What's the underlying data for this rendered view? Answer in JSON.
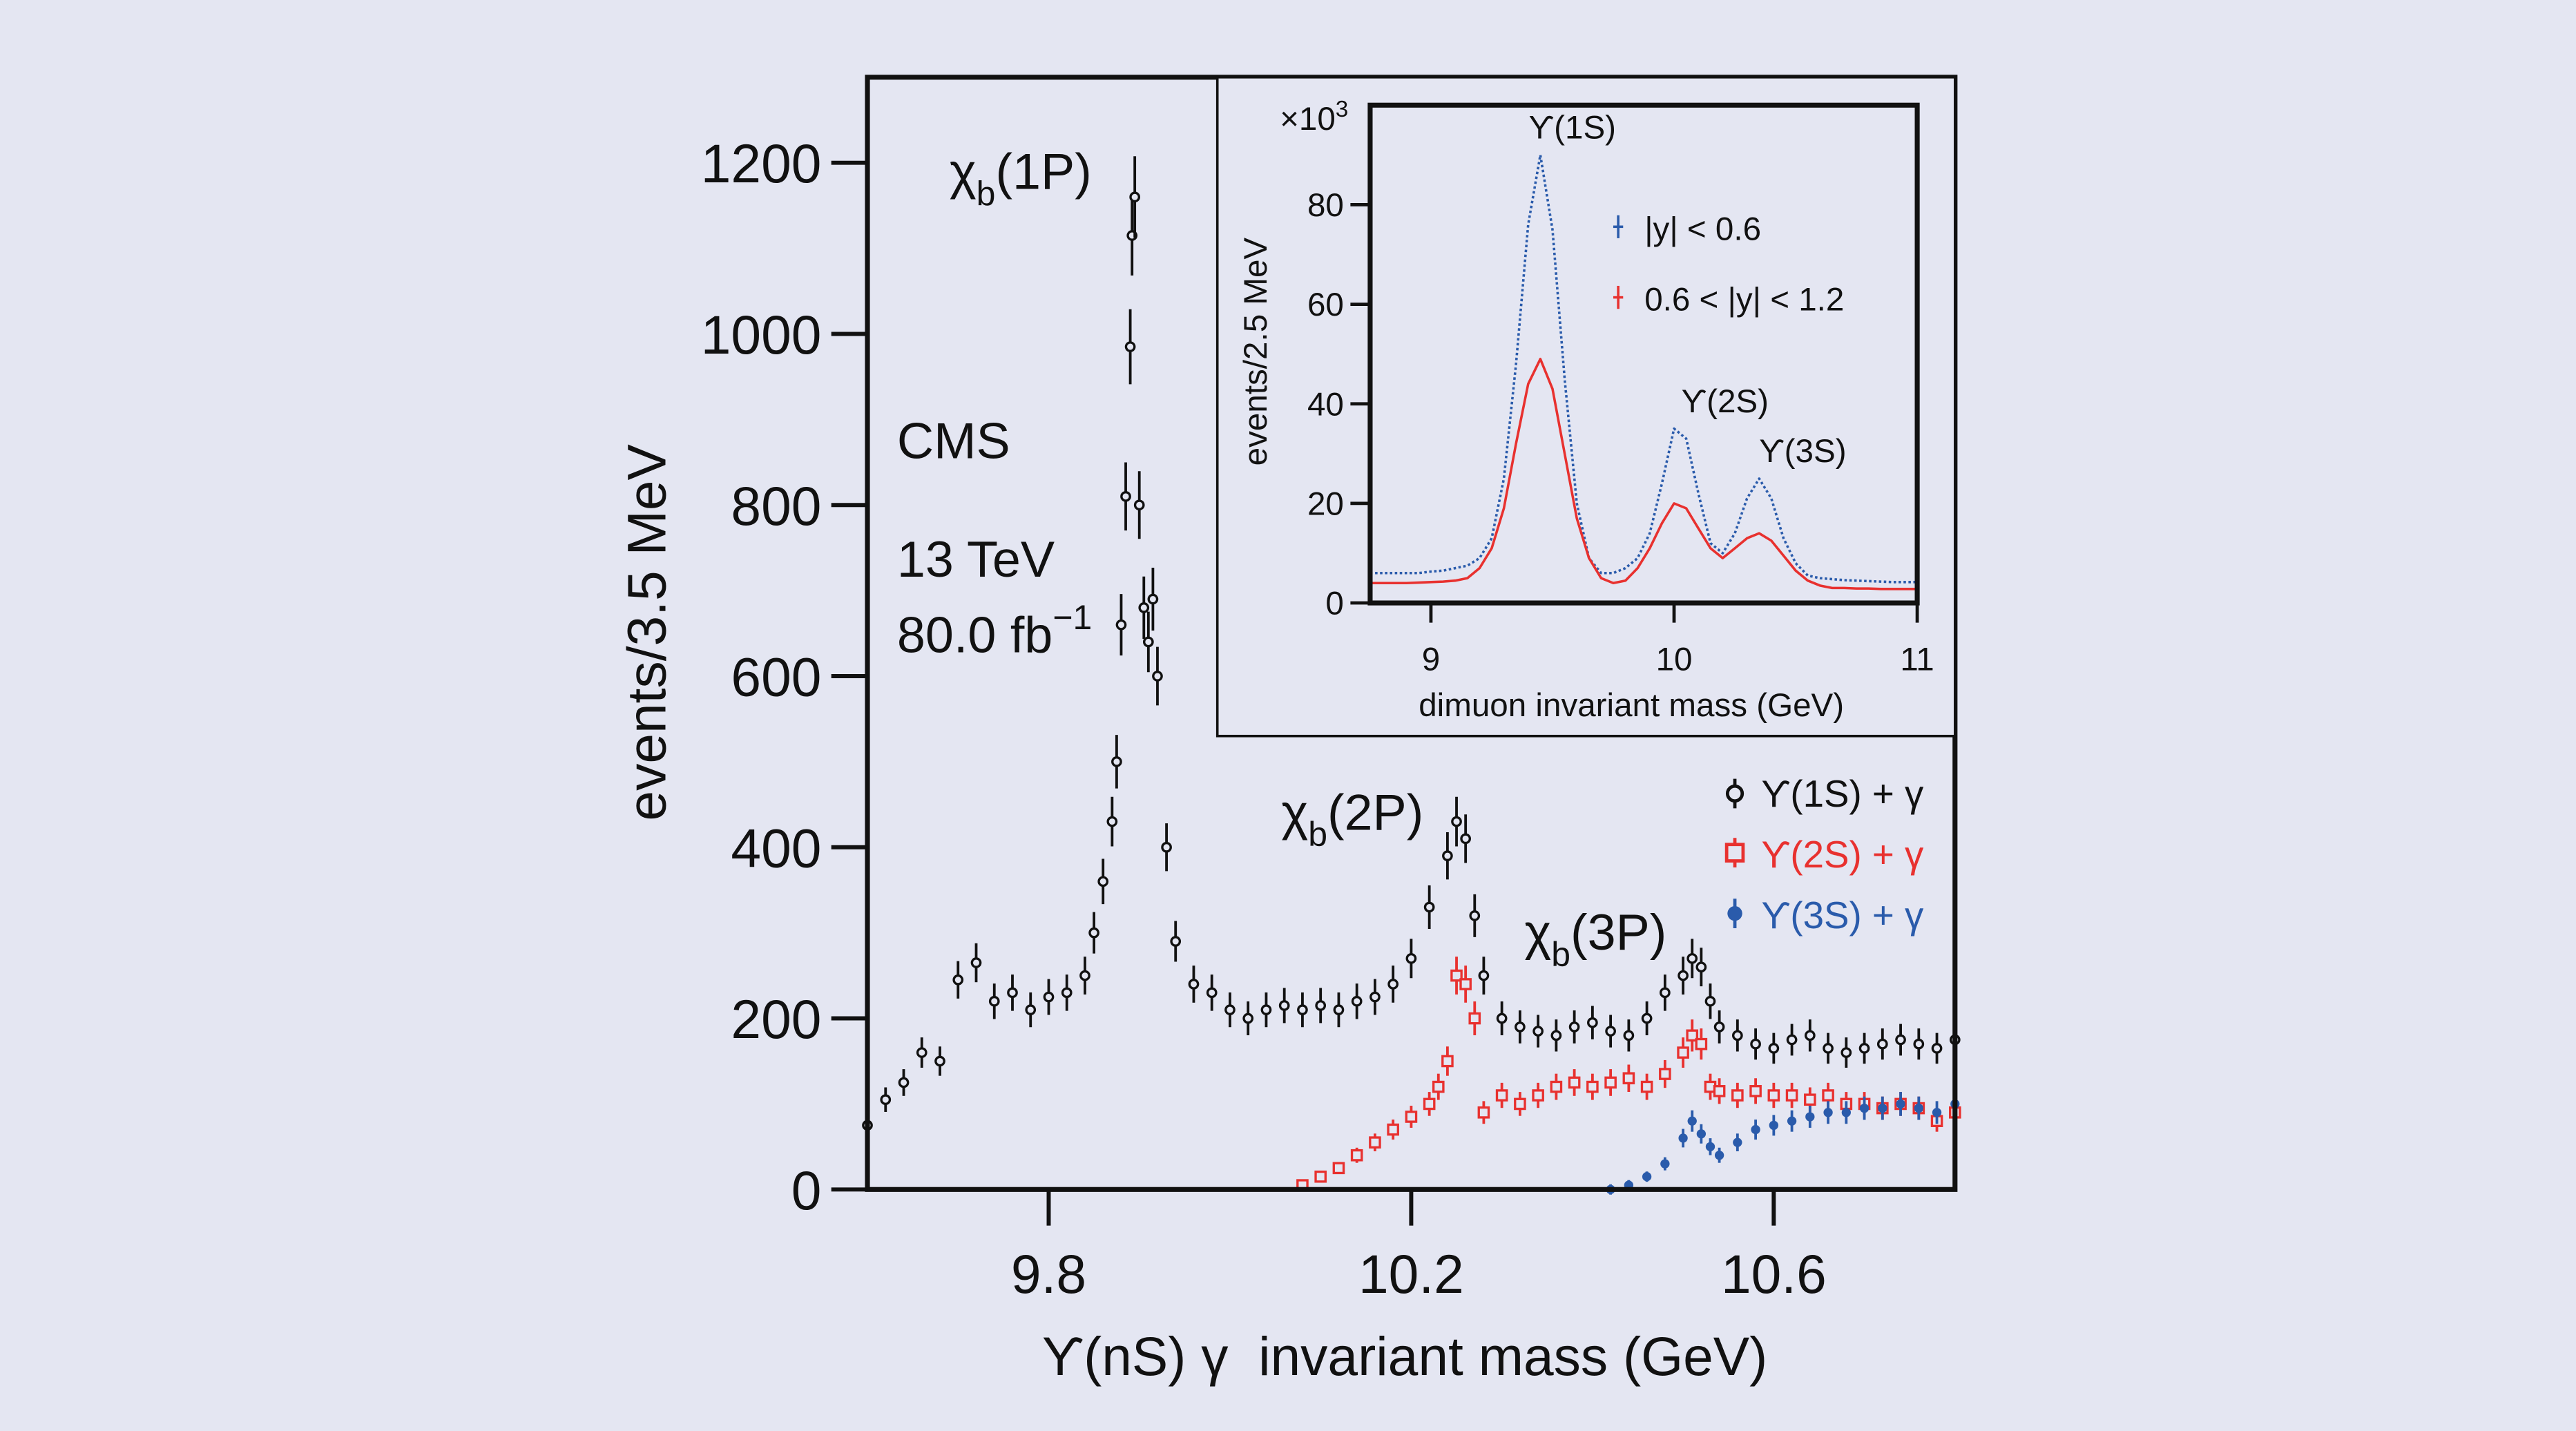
{
  "colors": {
    "background": "#e4e6f2",
    "y1s": "#111111",
    "y2s": "#e8312f",
    "y3s": "#2a5bab"
  },
  "chart_data": [
    {
      "type": "scatter",
      "xlabel": "ϒ(nS) γ  invariant mass (GeV)",
      "ylabel": "events/3.5 MeV",
      "xlim": [
        9.6,
        10.8
      ],
      "ylim": [
        0,
        1300
      ],
      "xticks": [
        "9.8",
        "10.2",
        "10.6"
      ],
      "yticks": [
        "0",
        "200",
        "400",
        "600",
        "800",
        "1000",
        "1200"
      ],
      "grid": false,
      "legend_placement": "center-right",
      "annotations": {
        "cms": "CMS",
        "energy": "13 TeV",
        "lumi": "80.0 fb",
        "lumi_sup": "−1",
        "chi1p": {
          "base": "χ",
          "sub": "b",
          "rest": "(1P)"
        },
        "chi2p": {
          "base": "χ",
          "sub": "b",
          "rest": "(2P)"
        },
        "chi3p": {
          "base": "χ",
          "sub": "b",
          "rest": "(3P)"
        }
      },
      "series": [
        {
          "name": "ϒ(1S) + γ",
          "marker": "open-circle",
          "color": "#111111",
          "x": [
            9.6,
            9.62,
            9.64,
            9.66,
            9.68,
            9.7,
            9.72,
            9.74,
            9.76,
            9.78,
            9.8,
            9.82,
            9.84,
            9.85,
            9.86,
            9.87,
            9.875,
            9.88,
            9.885,
            9.89,
            9.892,
            9.895,
            9.9,
            9.905,
            9.91,
            9.915,
            9.92,
            9.93,
            9.94,
            9.96,
            9.98,
            10.0,
            10.02,
            10.04,
            10.06,
            10.08,
            10.1,
            10.12,
            10.14,
            10.16,
            10.18,
            10.2,
            10.22,
            10.24,
            10.25,
            10.26,
            10.27,
            10.28,
            10.3,
            10.32,
            10.34,
            10.36,
            10.38,
            10.4,
            10.42,
            10.44,
            10.46,
            10.48,
            10.5,
            10.51,
            10.52,
            10.53,
            10.54,
            10.56,
            10.58,
            10.6,
            10.62,
            10.64,
            10.66,
            10.68,
            10.7,
            10.72,
            10.74,
            10.76,
            10.78,
            10.8
          ],
          "y": [
            75,
            105,
            125,
            160,
            150,
            245,
            265,
            220,
            230,
            210,
            225,
            230,
            250,
            300,
            360,
            430,
            500,
            660,
            810,
            985,
            1115,
            1160,
            800,
            680,
            640,
            690,
            600,
            400,
            290,
            240,
            230,
            210,
            200,
            210,
            215,
            210,
            215,
            210,
            220,
            225,
            240,
            270,
            330,
            390,
            430,
            410,
            320,
            250,
            200,
            190,
            185,
            180,
            190,
            195,
            185,
            180,
            200,
            230,
            250,
            270,
            260,
            220,
            190,
            180,
            170,
            165,
            175,
            180,
            165,
            160,
            165,
            170,
            175,
            170,
            165,
            175
          ]
        },
        {
          "name": "ϒ(2S) + γ",
          "marker": "open-square",
          "color": "#e8312f",
          "x": [
            10.08,
            10.1,
            10.12,
            10.14,
            10.16,
            10.18,
            10.2,
            10.22,
            10.23,
            10.24,
            10.25,
            10.26,
            10.27,
            10.28,
            10.3,
            10.32,
            10.34,
            10.36,
            10.38,
            10.4,
            10.42,
            10.44,
            10.46,
            10.48,
            10.5,
            10.51,
            10.52,
            10.53,
            10.54,
            10.56,
            10.58,
            10.6,
            10.62,
            10.64,
            10.66,
            10.68,
            10.7,
            10.72,
            10.74,
            10.76,
            10.78,
            10.8
          ],
          "y": [
            5,
            15,
            25,
            40,
            55,
            70,
            85,
            100,
            120,
            150,
            250,
            240,
            200,
            90,
            110,
            100,
            110,
            120,
            125,
            120,
            125,
            130,
            120,
            135,
            160,
            180,
            170,
            120,
            115,
            110,
            115,
            110,
            110,
            105,
            110,
            100,
            100,
            95,
            100,
            95,
            80,
            90
          ]
        },
        {
          "name": "ϒ(3S) + γ",
          "marker": "filled-circle",
          "color": "#2a5bab",
          "x": [
            10.42,
            10.44,
            10.46,
            10.48,
            10.5,
            10.51,
            10.52,
            10.53,
            10.54,
            10.56,
            10.58,
            10.6,
            10.62,
            10.64,
            10.66,
            10.68,
            10.7,
            10.72,
            10.74,
            10.76,
            10.78,
            10.8
          ],
          "y": [
            0,
            5,
            15,
            30,
            60,
            80,
            65,
            50,
            40,
            55,
            70,
            75,
            80,
            85,
            90,
            90,
            95,
            95,
            100,
            95,
            90,
            100
          ]
        }
      ]
    },
    {
      "type": "line",
      "xlabel": "dimuon invariant mass (GeV)",
      "ylabel": "events/2.5 MeV",
      "yscale_label": "×10",
      "yscale_sup": "3",
      "xlim": [
        8.75,
        11
      ],
      "ylim": [
        0,
        100
      ],
      "xticks": [
        "9",
        "10",
        "11"
      ],
      "yticks": [
        "0",
        "20",
        "40",
        "60",
        "80"
      ],
      "grid": false,
      "legend_placement": "top-right",
      "peak_labels": [
        {
          "text": "ϒ(1S)",
          "x": 9.46
        },
        {
          "text": "ϒ(2S)",
          "x": 10.02
        },
        {
          "text": "ϒ(3S)",
          "x": 10.36
        }
      ],
      "x": [
        8.75,
        8.8,
        8.85,
        8.9,
        8.95,
        9.0,
        9.05,
        9.1,
        9.15,
        9.2,
        9.25,
        9.3,
        9.35,
        9.4,
        9.45,
        9.5,
        9.55,
        9.6,
        9.65,
        9.7,
        9.75,
        9.8,
        9.85,
        9.9,
        9.95,
        10.0,
        10.05,
        10.1,
        10.15,
        10.2,
        10.25,
        10.3,
        10.35,
        10.4,
        10.45,
        10.5,
        10.55,
        10.6,
        10.65,
        10.7,
        10.75,
        10.8,
        10.85,
        10.9,
        10.95,
        11.0
      ],
      "series": [
        {
          "name": "|y| < 0.6",
          "color": "#2a5bab",
          "style": "dotted",
          "values": [
            6,
            6,
            6,
            6,
            6,
            6.3,
            6.5,
            7,
            7.5,
            9,
            13,
            25,
            48,
            76,
            90,
            75,
            45,
            20,
            9,
            6,
            6,
            7,
            9,
            14,
            24,
            35,
            33,
            22,
            12,
            10,
            14,
            21,
            25,
            21,
            13,
            8,
            5.5,
            5,
            4.8,
            4.6,
            4.5,
            4.4,
            4.3,
            4.2,
            4.2,
            4.2
          ]
        },
        {
          "name": "0.6 < |y| < 1.2",
          "color": "#e8312f",
          "style": "solid",
          "values": [
            4,
            4,
            4,
            4,
            4.1,
            4.2,
            4.3,
            4.5,
            5,
            7,
            11,
            19,
            32,
            44,
            49,
            43,
            30,
            17,
            9,
            5,
            4,
            4.5,
            7,
            11,
            16,
            20,
            19,
            15,
            11,
            9,
            11,
            13,
            14,
            12.5,
            9.5,
            6.5,
            4.5,
            3.5,
            3,
            3,
            2.9,
            2.9,
            2.8,
            2.8,
            2.8,
            2.8
          ]
        }
      ]
    }
  ]
}
